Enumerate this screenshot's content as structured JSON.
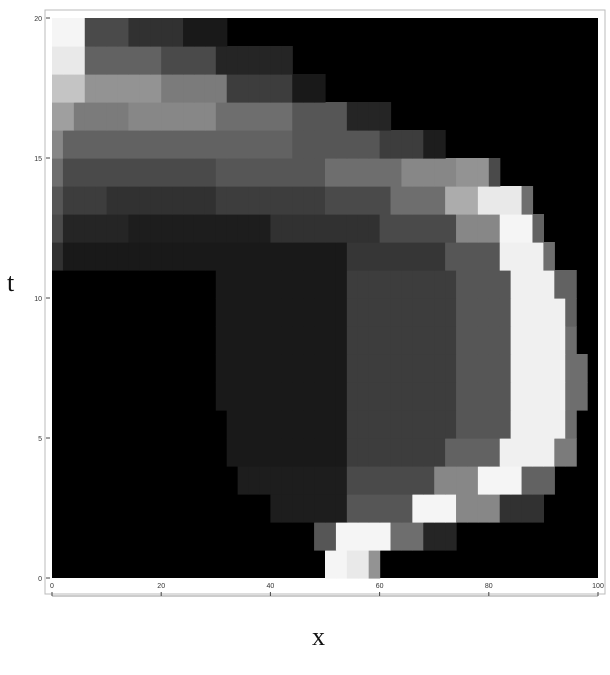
{
  "chart_data": {
    "type": "heatmap",
    "title": "",
    "xlabel": "x",
    "ylabel": "t",
    "xlim": [
      0,
      100
    ],
    "ylim": [
      0,
      20
    ],
    "x_ticks": [
      0,
      20,
      40,
      60,
      80,
      100
    ],
    "y_ticks": [
      0,
      5,
      10,
      15,
      20
    ],
    "x_tick_labels": [
      "0",
      "20",
      "40",
      "60",
      "80",
      "100"
    ],
    "y_tick_labels": [
      "0",
      "5",
      "10",
      "15",
      "20"
    ],
    "colormap": "grayscale",
    "grid": false,
    "legend": "none",
    "colors": {
      "background": "#ffffff",
      "low": "#000000",
      "high": "#ffffff",
      "frame": "#bbbbbb"
    },
    "grid_x": 50,
    "grid_y": 20,
    "cells": [
      {
        "t": 0.5,
        "spans": [
          [
            51,
            54,
            1.0
          ],
          [
            54,
            58,
            0.95
          ],
          [
            58,
            60,
            0.6
          ],
          [
            60,
            66,
            0.0
          ]
        ]
      },
      {
        "t": 1.5,
        "spans": [
          [
            48,
            53,
            0.35
          ],
          [
            53,
            62,
            1.0
          ],
          [
            62,
            68,
            0.45
          ],
          [
            68,
            75,
            0.15
          ]
        ]
      },
      {
        "t": 2.5,
        "spans": [
          [
            40,
            54,
            0.12
          ],
          [
            54,
            66,
            0.35
          ],
          [
            66,
            74,
            1.0
          ],
          [
            74,
            82,
            0.55
          ],
          [
            82,
            90,
            0.2
          ]
        ]
      },
      {
        "t": 3.5,
        "spans": [
          [
            35,
            55,
            0.12
          ],
          [
            55,
            70,
            0.3
          ],
          [
            70,
            78,
            0.55
          ],
          [
            78,
            87,
            1.0
          ],
          [
            87,
            93,
            0.4
          ]
        ]
      },
      {
        "t": 4.5,
        "spans": [
          [
            33,
            55,
            0.1
          ],
          [
            55,
            72,
            0.25
          ],
          [
            72,
            83,
            0.4
          ],
          [
            83,
            92,
            0.98
          ],
          [
            92,
            96,
            0.5
          ]
        ]
      },
      {
        "t": 5.5,
        "spans": [
          [
            32,
            55,
            0.1
          ],
          [
            55,
            74,
            0.25
          ],
          [
            74,
            85,
            0.35
          ],
          [
            85,
            94,
            0.98
          ],
          [
            94,
            97,
            0.45
          ]
        ]
      },
      {
        "t": 6.5,
        "spans": [
          [
            31,
            55,
            0.1
          ],
          [
            55,
            75,
            0.25
          ],
          [
            75,
            85,
            0.35
          ],
          [
            85,
            95,
            0.98
          ],
          [
            95,
            98,
            0.45
          ]
        ]
      },
      {
        "t": 7.5,
        "spans": [
          [
            31,
            55,
            0.1
          ],
          [
            55,
            75,
            0.25
          ],
          [
            75,
            85,
            0.35
          ],
          [
            85,
            95,
            0.98
          ],
          [
            95,
            98,
            0.45
          ]
        ]
      },
      {
        "t": 8.5,
        "spans": [
          [
            31,
            55,
            0.1
          ],
          [
            55,
            75,
            0.25
          ],
          [
            75,
            85,
            0.35
          ],
          [
            85,
            94,
            0.98
          ],
          [
            94,
            97,
            0.45
          ]
        ]
      },
      {
        "t": 9.5,
        "spans": [
          [
            31,
            55,
            0.1
          ],
          [
            55,
            74,
            0.25
          ],
          [
            74,
            84,
            0.35
          ],
          [
            84,
            94,
            0.98
          ],
          [
            94,
            97,
            0.4
          ]
        ]
      },
      {
        "t": 10.5,
        "spans": [
          [
            30,
            55,
            0.1
          ],
          [
            55,
            74,
            0.25
          ],
          [
            74,
            84,
            0.35
          ],
          [
            84,
            93,
            0.98
          ],
          [
            93,
            96,
            0.4
          ]
        ]
      },
      {
        "t": 11.5,
        "spans": [
          [
            0,
            2,
            0.2
          ],
          [
            2,
            15,
            0.1
          ],
          [
            15,
            55,
            0.1
          ],
          [
            55,
            72,
            0.22
          ],
          [
            72,
            82,
            0.35
          ],
          [
            82,
            90,
            0.98
          ],
          [
            90,
            93,
            0.45
          ]
        ]
      },
      {
        "t": 12.5,
        "spans": [
          [
            0,
            2,
            0.3
          ],
          [
            2,
            15,
            0.15
          ],
          [
            15,
            40,
            0.12
          ],
          [
            40,
            60,
            0.2
          ],
          [
            60,
            75,
            0.3
          ],
          [
            75,
            82,
            0.55
          ],
          [
            82,
            89,
            1.0
          ],
          [
            89,
            91,
            0.4
          ]
        ]
      },
      {
        "t": 13.5,
        "spans": [
          [
            0,
            2,
            0.35
          ],
          [
            2,
            10,
            0.25
          ],
          [
            10,
            30,
            0.2
          ],
          [
            30,
            50,
            0.25
          ],
          [
            50,
            62,
            0.3
          ],
          [
            62,
            72,
            0.45
          ],
          [
            72,
            79,
            0.7
          ],
          [
            79,
            86,
            0.95
          ],
          [
            86,
            89,
            0.45
          ]
        ]
      },
      {
        "t": 14.5,
        "spans": [
          [
            0,
            2,
            0.45
          ],
          [
            2,
            15,
            0.3
          ],
          [
            15,
            30,
            0.3
          ],
          [
            30,
            50,
            0.35
          ],
          [
            50,
            65,
            0.45
          ],
          [
            65,
            75,
            0.55
          ],
          [
            75,
            80,
            0.6
          ],
          [
            80,
            82,
            0.3
          ]
        ]
      },
      {
        "t": 15.5,
        "spans": [
          [
            0,
            3,
            0.55
          ],
          [
            3,
            15,
            0.4
          ],
          [
            15,
            30,
            0.4
          ],
          [
            30,
            45,
            0.4
          ],
          [
            45,
            60,
            0.35
          ],
          [
            60,
            68,
            0.25
          ],
          [
            68,
            72,
            0.12
          ]
        ]
      },
      {
        "t": 16.5,
        "spans": [
          [
            0,
            4,
            0.65
          ],
          [
            4,
            15,
            0.5
          ],
          [
            15,
            30,
            0.55
          ],
          [
            30,
            45,
            0.45
          ],
          [
            45,
            55,
            0.35
          ],
          [
            55,
            62,
            0.15
          ]
        ]
      },
      {
        "t": 17.5,
        "spans": [
          [
            0,
            6,
            0.8
          ],
          [
            6,
            20,
            0.6
          ],
          [
            20,
            32,
            0.5
          ],
          [
            32,
            45,
            0.25
          ],
          [
            45,
            50,
            0.1
          ]
        ]
      },
      {
        "t": 18.5,
        "spans": [
          [
            0,
            7,
            0.95
          ],
          [
            7,
            20,
            0.4
          ],
          [
            20,
            30,
            0.3
          ],
          [
            30,
            45,
            0.15
          ]
        ]
      },
      {
        "t": 19.5,
        "spans": [
          [
            0,
            6,
            1.0
          ],
          [
            6,
            15,
            0.3
          ],
          [
            15,
            25,
            0.2
          ],
          [
            25,
            32,
            0.1
          ]
        ]
      }
    ]
  }
}
